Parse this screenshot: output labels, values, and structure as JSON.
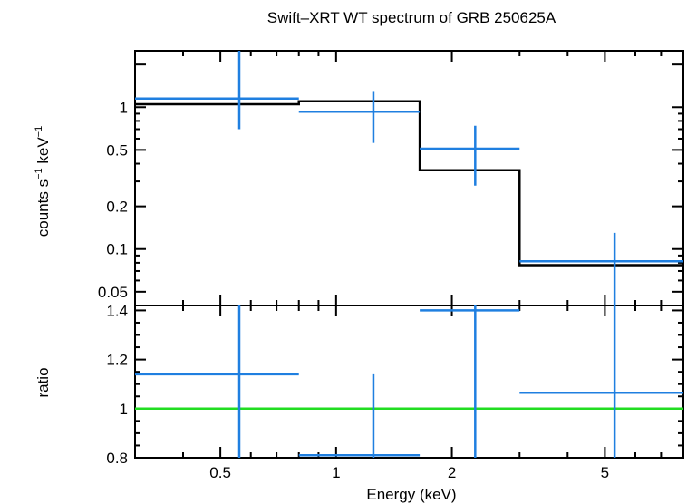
{
  "chart_data": [
    {
      "type": "line",
      "title": "Swift–XRT WT spectrum of GRB 250625A",
      "ylabel_base": "counts s",
      "ylabel_mid": " keV",
      "ylabel_sup": "−1",
      "yscale": "log",
      "xscale": "log",
      "xlim": [
        0.3,
        8.0
      ],
      "ylim": [
        0.04,
        2.5
      ],
      "yticks": [
        {
          "v": 1,
          "label": "1"
        },
        {
          "v": 0.5,
          "label": "0.5"
        },
        {
          "v": 0.2,
          "label": "0.2"
        },
        {
          "v": 0.1,
          "label": "0.1"
        },
        {
          "v": 0.05,
          "label": "0.05"
        }
      ],
      "data": [
        {
          "x": 0.56,
          "xlo": 0.3,
          "xhi": 0.8,
          "y": 1.15,
          "ylo": 0.7,
          "yhi": 2.5
        },
        {
          "x": 1.25,
          "xlo": 0.8,
          "xhi": 1.65,
          "y": 0.93,
          "ylo": 0.56,
          "yhi": 1.3
        },
        {
          "x": 2.3,
          "xlo": 1.65,
          "xhi": 3.0,
          "y": 0.51,
          "ylo": 0.28,
          "yhi": 0.74
        },
        {
          "x": 5.3,
          "xlo": 3.0,
          "xhi": 8.0,
          "y": 0.082,
          "ylo": 0.04,
          "yhi": 0.13
        }
      ],
      "model": [
        {
          "xlo": 0.3,
          "xhi": 0.8,
          "y": 1.05
        },
        {
          "xlo": 0.8,
          "xhi": 1.65,
          "y": 1.1
        },
        {
          "xlo": 1.65,
          "xhi": 3.0,
          "y": 0.36
        },
        {
          "xlo": 3.0,
          "xhi": 8.0,
          "y": 0.077
        }
      ]
    },
    {
      "type": "line",
      "xlabel": "Energy (keV)",
      "ylabel": "ratio",
      "xscale": "log",
      "xlim": [
        0.3,
        8.0
      ],
      "ylim": [
        0.8,
        1.42
      ],
      "yticks": [
        {
          "v": 1.4,
          "label": "1.4"
        },
        {
          "v": 1.2,
          "label": "1.2"
        },
        {
          "v": 1.0,
          "label": "1"
        },
        {
          "v": 0.8,
          "label": "0.8"
        }
      ],
      "xticks": [
        {
          "v": 0.5,
          "label": "0.5"
        },
        {
          "v": 1,
          "label": "1"
        },
        {
          "v": 2,
          "label": "2"
        },
        {
          "v": 5,
          "label": "5"
        }
      ],
      "reference_line": 1.0,
      "data": [
        {
          "x": 0.56,
          "xlo": 0.3,
          "xhi": 0.8,
          "y": 1.14,
          "ylo": 0.8,
          "yhi": 1.42
        },
        {
          "x": 1.25,
          "xlo": 0.8,
          "xhi": 1.65,
          "y": 0.81,
          "ylo": 0.8,
          "yhi": 1.14
        },
        {
          "x": 2.3,
          "xlo": 1.65,
          "xhi": 3.0,
          "y": 1.4,
          "ylo": 0.8,
          "yhi": 1.42
        },
        {
          "x": 5.3,
          "xlo": 3.0,
          "xhi": 8.0,
          "y": 1.065,
          "ylo": 0.8,
          "yhi": 1.42
        }
      ]
    }
  ],
  "colors": {
    "data": "#1f7fe0",
    "model": "#000000",
    "reference": "#22dd22",
    "axes": "#000000"
  }
}
